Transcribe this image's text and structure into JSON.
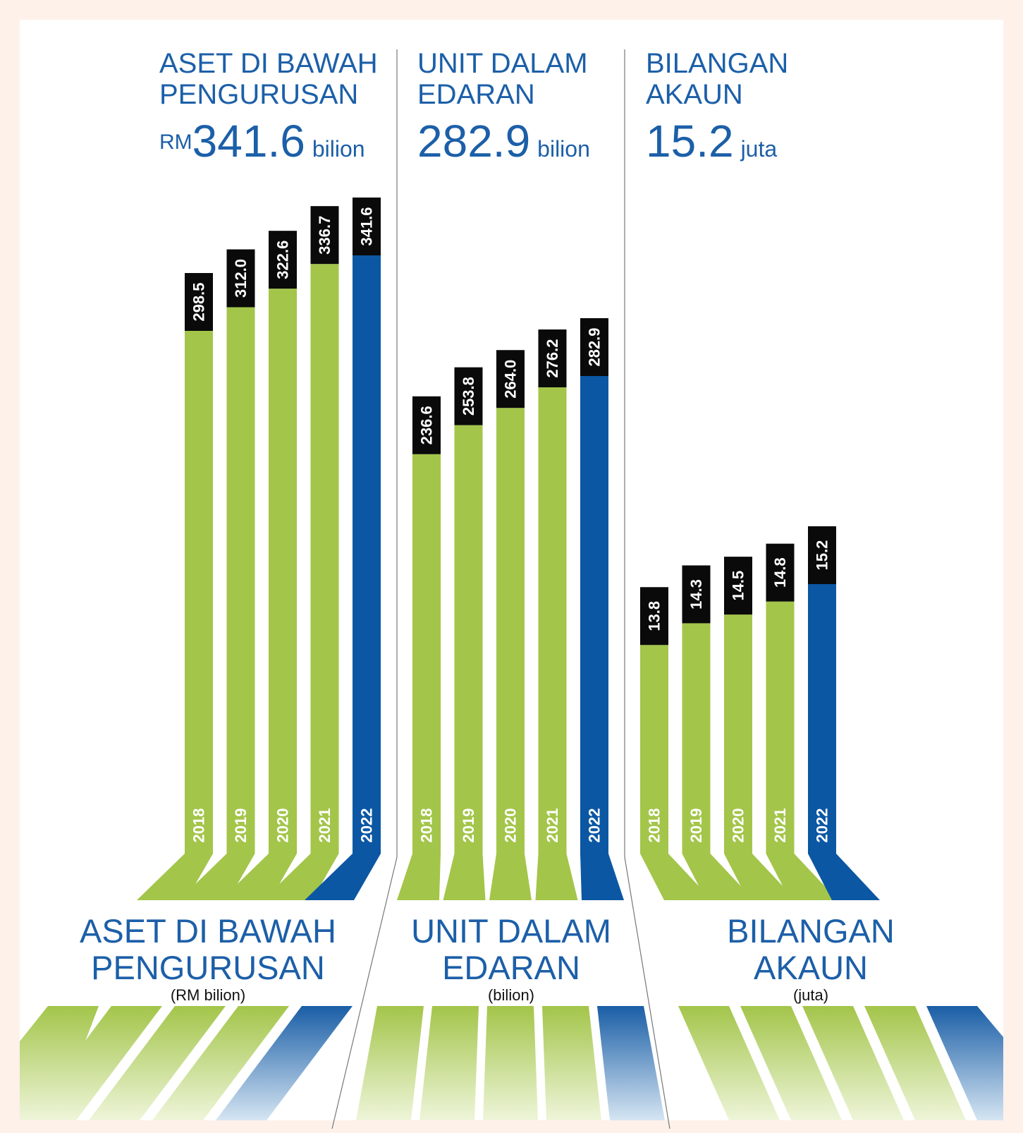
{
  "colors": {
    "background": "#fdf1ea",
    "panel": "#ffffff",
    "bar_green": "#a3c54a",
    "bar_blue": "#0b57a3",
    "label_box": "#0a0a0a",
    "title_blue": "#1c5fa8",
    "divider": "#777777"
  },
  "panels": [
    {
      "head_title": "ASET DI BAWAH PENGURUSAN",
      "big_prefix": "RM",
      "big_value": "341.6",
      "big_unit": "bilion",
      "foot_title": "ASET DI BAWAH PENGURUSAN",
      "foot_sub": "(RM bilion)"
    },
    {
      "head_title": "UNIT DALAM EDARAN",
      "big_prefix": "",
      "big_value": "282.9",
      "big_unit": "bilion",
      "foot_title": "UNIT DALAM EDARAN",
      "foot_sub": "(bilion)"
    },
    {
      "head_title": "BILANGAN AKAUN",
      "big_prefix": "",
      "big_value": "15.2",
      "big_unit": "juta",
      "foot_title": "BILANGAN AKAUN",
      "foot_sub": "(juta)"
    }
  ],
  "chart_data": [
    {
      "type": "bar",
      "title": "ASET DI BAWAH PENGURUSAN",
      "ylabel": "(RM bilion)",
      "categories": [
        "2018",
        "2019",
        "2020",
        "2021",
        "2022"
      ],
      "values": [
        298.5,
        312.0,
        322.6,
        336.7,
        341.6
      ],
      "value_labels": [
        "298.5",
        "312.0",
        "322.6",
        "336.7",
        "341.6"
      ],
      "highlight_index": 4
    },
    {
      "type": "bar",
      "title": "UNIT DALAM EDARAN",
      "ylabel": "(bilion)",
      "categories": [
        "2018",
        "2019",
        "2020",
        "2021",
        "2022"
      ],
      "values": [
        236.6,
        253.8,
        264.0,
        276.2,
        282.9
      ],
      "value_labels": [
        "236.6",
        "253.8",
        "264.0",
        "276.2",
        "282.9"
      ],
      "highlight_index": 4
    },
    {
      "type": "bar",
      "title": "BILANGAN AKAUN",
      "ylabel": "(juta)",
      "categories": [
        "2018",
        "2019",
        "2020",
        "2021",
        "2022"
      ],
      "values": [
        13.8,
        14.3,
        14.5,
        14.8,
        15.2
      ],
      "value_labels": [
        "13.8",
        "14.3",
        "14.5",
        "14.8",
        "15.2"
      ],
      "highlight_index": 4
    }
  ]
}
